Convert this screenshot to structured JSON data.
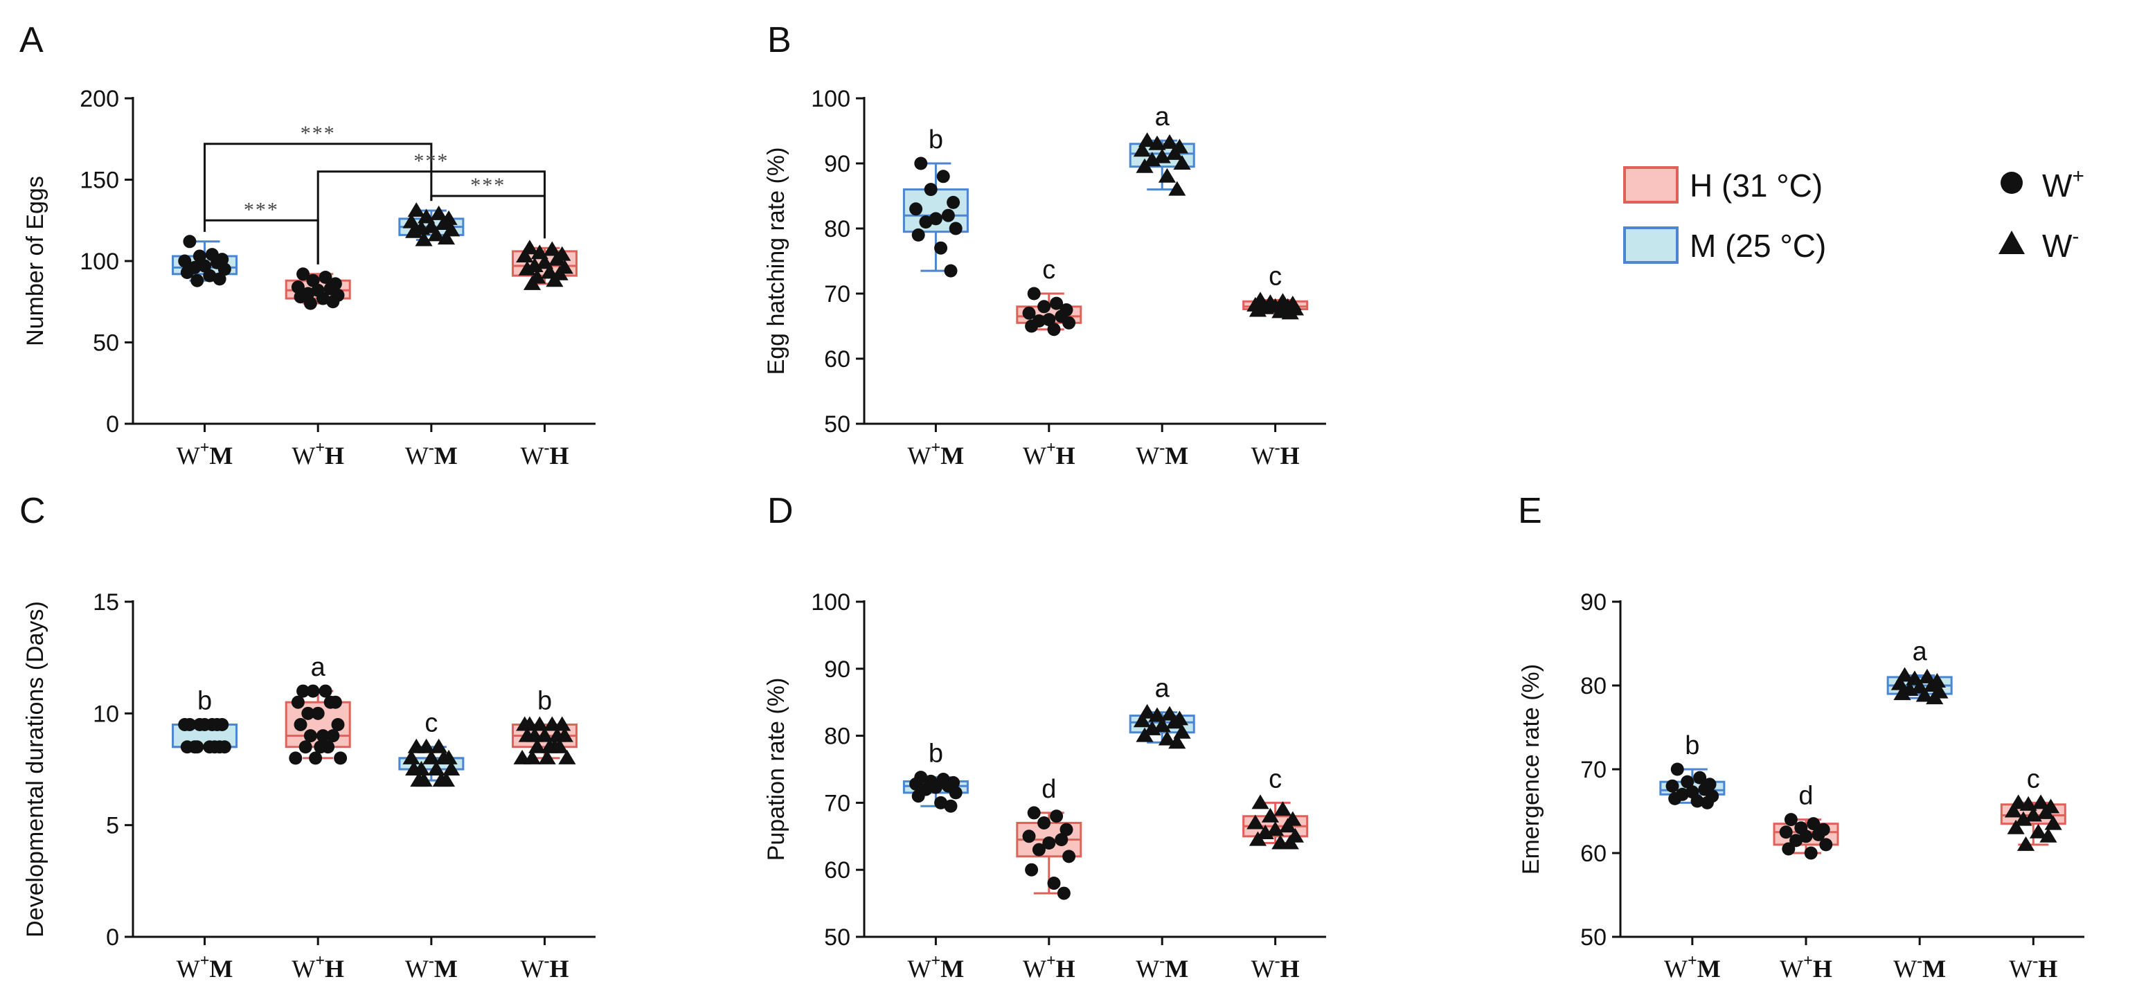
{
  "colors": {
    "H_fill": "#f9c4c0",
    "H_stroke": "#e0605a",
    "M_fill": "#c5e6ec",
    "M_stroke": "#4a86d1",
    "axis": "#111111",
    "point": "#111111",
    "bracket": "#111111"
  },
  "legend": {
    "items": [
      {
        "label": "H (31 °C)",
        "group": "H"
      },
      {
        "label": "M (25 °C)",
        "group": "M"
      }
    ],
    "markers": [
      {
        "label": "W",
        "sup": "+",
        "shape": "circle"
      },
      {
        "label": "W",
        "sup": "-",
        "shape": "triangle"
      }
    ]
  },
  "chart_data": [
    {
      "panel": "A",
      "type": "box",
      "ylabel": "Number of Eggs",
      "ylim": [
        0,
        200
      ],
      "yticks": [
        0,
        50,
        100,
        150,
        200
      ],
      "groups": [
        {
          "label": "W",
          "sup": "+",
          "tag": "M",
          "temp": "M",
          "marker": "circle",
          "box": {
            "min": 88,
            "q1": 92,
            "median": 96,
            "q3": 103,
            "max": 112
          },
          "points": [
            112,
            104,
            103,
            101,
            100,
            99,
            97,
            96,
            95,
            93,
            91,
            89,
            88
          ]
        },
        {
          "label": "W",
          "sup": "+",
          "tag": "H",
          "temp": "H",
          "marker": "circle",
          "box": {
            "min": 74,
            "q1": 77,
            "median": 82,
            "q3": 88,
            "max": 92
          },
          "points": [
            92,
            90,
            88,
            86,
            84,
            83,
            82,
            80,
            79,
            78,
            77,
            75,
            74
          ]
        },
        {
          "label": "W",
          "sup": "-",
          "tag": "M",
          "temp": "M",
          "marker": "triangle",
          "box": {
            "min": 113,
            "q1": 116,
            "median": 121,
            "q3": 126,
            "max": 131
          },
          "points": [
            131,
            129,
            127,
            126,
            124,
            123,
            121,
            120,
            119,
            118,
            116,
            114,
            113
          ]
        },
        {
          "label": "W",
          "sup": "-",
          "tag": "H",
          "temp": "H",
          "marker": "triangle",
          "box": {
            "min": 86,
            "q1": 91,
            "median": 97,
            "q3": 106,
            "max": 108
          },
          "points": [
            108,
            107,
            105,
            104,
            103,
            101,
            99,
            97,
            96,
            95,
            93,
            92,
            90,
            88,
            86
          ]
        }
      ],
      "brackets": [
        {
          "from": 0,
          "to": 2,
          "y": 172,
          "label": "***"
        },
        {
          "from": 0,
          "to": 1,
          "y": 125,
          "label": "***"
        },
        {
          "from": 1,
          "to": 3,
          "y": 155,
          "label": "***"
        },
        {
          "from": 2,
          "to": 3,
          "y": 140,
          "label": "***"
        }
      ]
    },
    {
      "panel": "B",
      "type": "box",
      "ylabel": "Egg hatching rate (%)",
      "ylim": [
        50,
        100
      ],
      "yticks": [
        50,
        60,
        70,
        80,
        90,
        100
      ],
      "sig_letters": [
        "b",
        "c",
        "a",
        "c"
      ],
      "groups": [
        {
          "label": "W",
          "sup": "+",
          "tag": "M",
          "temp": "M",
          "marker": "circle",
          "box": {
            "min": 73.5,
            "q1": 79.5,
            "median": 82,
            "q3": 86,
            "max": 90
          },
          "points": [
            90,
            88,
            86,
            84,
            83,
            82,
            81.5,
            81,
            80,
            79,
            77,
            73.5
          ]
        },
        {
          "label": "W",
          "sup": "+",
          "tag": "H",
          "temp": "H",
          "marker": "circle",
          "box": {
            "min": 64.5,
            "q1": 65.5,
            "median": 66.5,
            "q3": 68,
            "max": 70
          },
          "points": [
            70,
            68.5,
            68,
            67.5,
            67,
            66.5,
            66,
            65.8,
            65.5,
            65,
            64.5
          ]
        },
        {
          "label": "W",
          "sup": "-",
          "tag": "M",
          "temp": "M",
          "marker": "triangle",
          "box": {
            "min": 86,
            "q1": 89.5,
            "median": 91.5,
            "q3": 93,
            "max": 93.5
          },
          "points": [
            93.5,
            93.2,
            93,
            92.5,
            92,
            91.5,
            91,
            90.5,
            90,
            89.5,
            88,
            86
          ]
        },
        {
          "label": "W",
          "sup": "-",
          "tag": "H",
          "temp": "H",
          "marker": "triangle",
          "box": {
            "min": 67,
            "q1": 67.6,
            "median": 68,
            "q3": 68.8,
            "max": 69
          },
          "points": [
            69,
            68.8,
            68.6,
            68.4,
            68.2,
            68,
            68,
            67.8,
            67.6,
            67.4,
            67.2,
            67
          ]
        }
      ]
    },
    {
      "panel": "C",
      "type": "box",
      "ylabel": "Developmental durations (Days)",
      "ylim": [
        0,
        15
      ],
      "yticks": [
        0,
        5,
        10,
        15
      ],
      "sig_letters": [
        "b",
        "a",
        "c",
        "b"
      ],
      "groups": [
        {
          "label": "W",
          "sup": "+",
          "tag": "M",
          "temp": "M",
          "marker": "circle",
          "box": {
            "min": 8.5,
            "q1": 8.5,
            "median": 8.5,
            "q3": 9.5,
            "max": 9.5
          },
          "points": [
            9.5,
            9.5,
            9.5,
            9.5,
            9.5,
            9.5,
            9.5,
            8.5,
            8.5,
            8.5,
            8.5,
            8.5,
            8.5,
            8.5
          ]
        },
        {
          "label": "W",
          "sup": "+",
          "tag": "H",
          "temp": "H",
          "marker": "circle",
          "box": {
            "min": 8,
            "q1": 8.5,
            "median": 9,
            "q3": 10.5,
            "max": 11
          },
          "points": [
            11,
            11,
            11,
            10.5,
            10.5,
            10.5,
            10,
            10,
            9.5,
            9.5,
            9,
            9,
            9,
            8.5,
            8.5,
            8.5,
            8,
            8,
            8
          ]
        },
        {
          "label": "W",
          "sup": "-",
          "tag": "M",
          "temp": "M",
          "marker": "triangle",
          "box": {
            "min": 7,
            "q1": 7.5,
            "median": 8,
            "q3": 8,
            "max": 8.5
          },
          "points": [
            8.5,
            8.5,
            8.5,
            8,
            8,
            8,
            8,
            7.5,
            7.5,
            7.5,
            7.5,
            7,
            7,
            7,
            7
          ]
        },
        {
          "label": "W",
          "sup": "-",
          "tag": "H",
          "temp": "H",
          "marker": "triangle",
          "box": {
            "min": 8,
            "q1": 8.5,
            "median": 9,
            "q3": 9.5,
            "max": 9.5
          },
          "points": [
            9.5,
            9.5,
            9.5,
            9.5,
            9.5,
            9,
            9,
            9,
            9,
            9,
            8.5,
            8.5,
            8.5,
            8.5,
            8,
            8,
            8,
            8
          ]
        }
      ]
    },
    {
      "panel": "D",
      "type": "box",
      "ylabel": "Pupation rate (%)",
      "ylim": [
        50,
        100
      ],
      "yticks": [
        50,
        60,
        70,
        80,
        90,
        100
      ],
      "sig_letters": [
        "b",
        "d",
        "a",
        "c"
      ],
      "groups": [
        {
          "label": "W",
          "sup": "+",
          "tag": "M",
          "temp": "M",
          "marker": "circle",
          "box": {
            "min": 69.5,
            "q1": 71.5,
            "median": 72.5,
            "q3": 73.2,
            "max": 73.8
          },
          "points": [
            73.8,
            73.5,
            73.2,
            73,
            72.8,
            72.5,
            72.3,
            72,
            71.5,
            71,
            70,
            69.5
          ]
        },
        {
          "label": "W",
          "sup": "+",
          "tag": "H",
          "temp": "H",
          "marker": "circle",
          "box": {
            "min": 56.5,
            "q1": 62,
            "median": 64.5,
            "q3": 67,
            "max": 68.5
          },
          "points": [
            68.5,
            68,
            67,
            66,
            65,
            64.5,
            64,
            63,
            62,
            60,
            58,
            56.5
          ]
        },
        {
          "label": "W",
          "sup": "-",
          "tag": "M",
          "temp": "M",
          "marker": "triangle",
          "box": {
            "min": 79,
            "q1": 80.5,
            "median": 82,
            "q3": 83,
            "max": 83.5
          },
          "points": [
            83.5,
            83.2,
            83,
            82.5,
            82.2,
            82,
            81.5,
            81,
            80.5,
            80,
            79.5,
            79
          ]
        },
        {
          "label": "W",
          "sup": "-",
          "tag": "H",
          "temp": "H",
          "marker": "triangle",
          "box": {
            "min": 64,
            "q1": 65,
            "median": 66.5,
            "q3": 68,
            "max": 70
          },
          "points": [
            70,
            69,
            68,
            67.5,
            67,
            66.5,
            66,
            65.5,
            65,
            64.5,
            64,
            64
          ]
        }
      ]
    },
    {
      "panel": "E",
      "type": "box",
      "ylabel": "Emergence rate (%)",
      "ylim": [
        50,
        90
      ],
      "yticks": [
        50,
        60,
        70,
        80,
        90
      ],
      "sig_letters": [
        "b",
        "d",
        "a",
        "c"
      ],
      "groups": [
        {
          "label": "W",
          "sup": "+",
          "tag": "M",
          "temp": "M",
          "marker": "circle",
          "box": {
            "min": 66,
            "q1": 67,
            "median": 67.5,
            "q3": 68.5,
            "max": 70
          },
          "points": [
            70,
            69,
            68.5,
            68.2,
            68,
            67.6,
            67.3,
            67,
            66.8,
            66.5,
            66.2,
            66
          ]
        },
        {
          "label": "W",
          "sup": "+",
          "tag": "H",
          "temp": "H",
          "marker": "circle",
          "box": {
            "min": 60,
            "q1": 61,
            "median": 62.5,
            "q3": 63.5,
            "max": 64
          },
          "points": [
            64,
            63.5,
            63,
            62.8,
            62.5,
            62.2,
            62,
            61.5,
            61,
            60.5,
            60
          ]
        },
        {
          "label": "W",
          "sup": "-",
          "tag": "M",
          "temp": "M",
          "marker": "triangle",
          "box": {
            "min": 78.5,
            "q1": 79,
            "median": 80,
            "q3": 81,
            "max": 81.2
          },
          "points": [
            81.2,
            81,
            80.8,
            80.5,
            80.2,
            80,
            79.8,
            79.5,
            79.2,
            79,
            78.8,
            78.5
          ]
        },
        {
          "label": "W",
          "sup": "-",
          "tag": "H",
          "temp": "H",
          "marker": "triangle",
          "box": {
            "min": 61,
            "q1": 63.5,
            "median": 64.5,
            "q3": 65.8,
            "max": 66
          },
          "points": [
            66,
            66,
            65.8,
            65.5,
            65,
            64.8,
            64.5,
            64,
            63.5,
            63,
            62.5,
            62,
            61
          ]
        }
      ]
    }
  ]
}
